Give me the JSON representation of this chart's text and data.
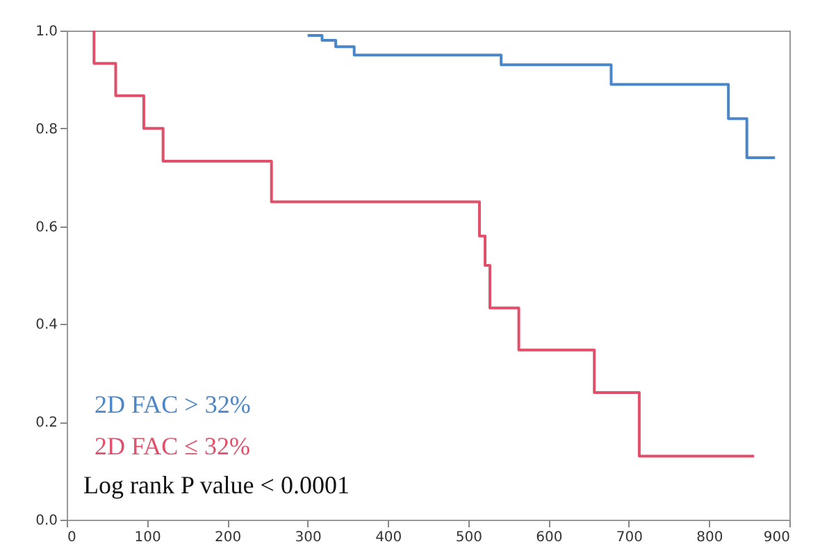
{
  "chart_data": {
    "type": "step",
    "xlim": [
      0,
      900
    ],
    "ylim": [
      0,
      1
    ],
    "xticks": [
      0,
      100,
      200,
      300,
      400,
      500,
      600,
      700,
      800,
      900
    ],
    "yticks": [
      {
        "value": 0,
        "label": "0.0"
      },
      0.2,
      0.4,
      0.6,
      0.8,
      {
        "value": 1,
        "label": "1.0"
      }
    ],
    "grid": false,
    "legend": "bottom left",
    "series": [
      {
        "name": "2D FAC > 32%",
        "color": "#4a86c8",
        "x": [
          300,
          318,
          335,
          358,
          541,
          678,
          824,
          847,
          882
        ],
        "values": [
          0.99,
          0.98,
          0.967,
          0.95,
          0.93,
          0.89,
          0.82,
          0.74,
          0.74
        ]
      },
      {
        "name": "2D FAC ≤ 32%",
        "color": "#e0506a",
        "x": [
          34,
          34,
          61,
          96,
          120,
          255,
          514,
          521,
          527,
          563,
          657,
          713,
          856
        ],
        "values": [
          1,
          0.933,
          0.867,
          0.8,
          0.733,
          0.65,
          0.58,
          0.52,
          0.433,
          0.347,
          0.26,
          0.13,
          0.13
        ]
      }
    ],
    "annotations": [
      "Log rank P value < 0.0001"
    ]
  }
}
